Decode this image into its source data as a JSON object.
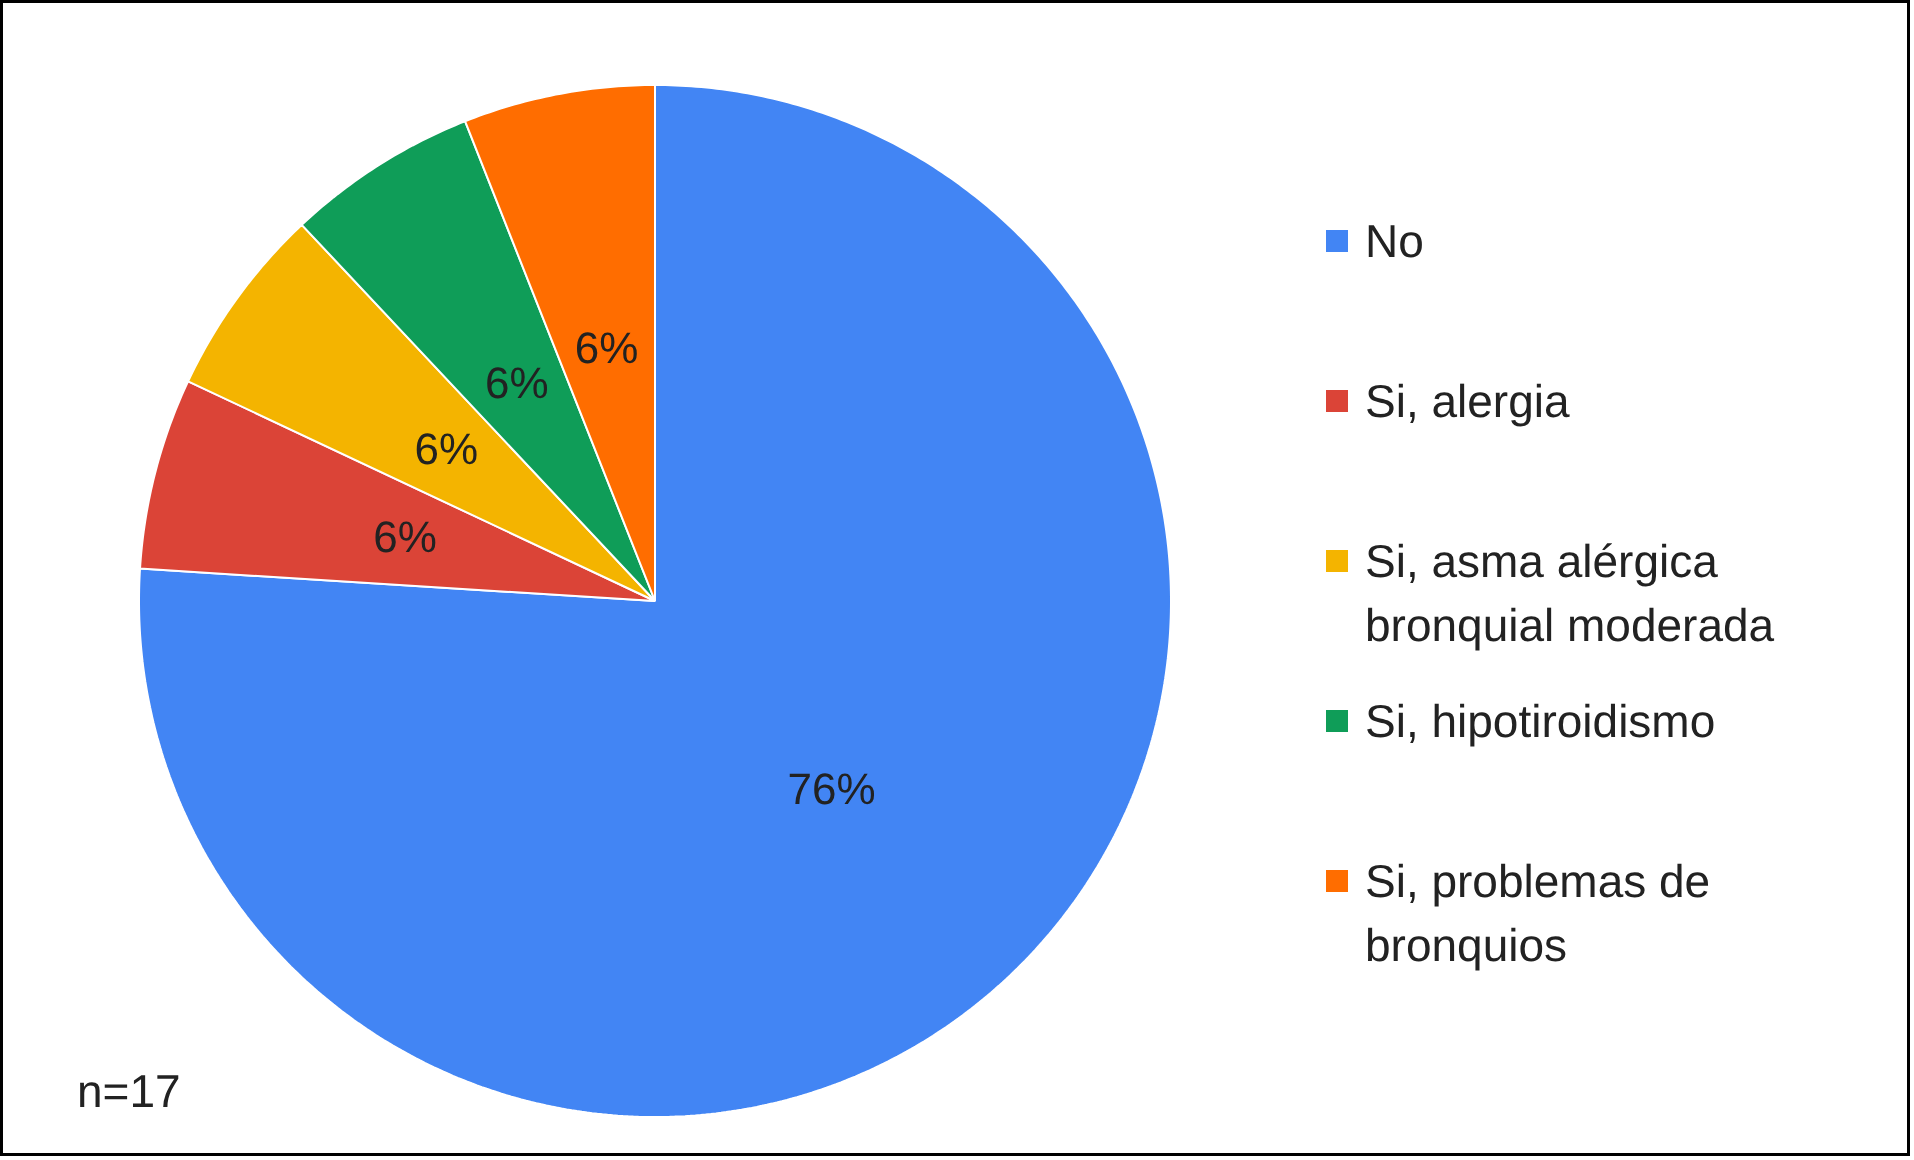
{
  "chart_data": {
    "type": "pie",
    "categories": [
      "No",
      "Si, alergia",
      "Si, asma alérgica bronquial moderada",
      "Si, hipotiroidismo",
      "Si, problemas de bronquios"
    ],
    "values": [
      76,
      6,
      6,
      6,
      6
    ],
    "colors": [
      "#4285f4",
      "#db4437",
      "#f4b400",
      "#0f9d58",
      "#ff6d00"
    ],
    "value_labels": [
      "76%",
      "6%",
      "6%",
      "6%",
      "6%"
    ],
    "legend": "right",
    "annotations": [
      "n=17"
    ]
  }
}
